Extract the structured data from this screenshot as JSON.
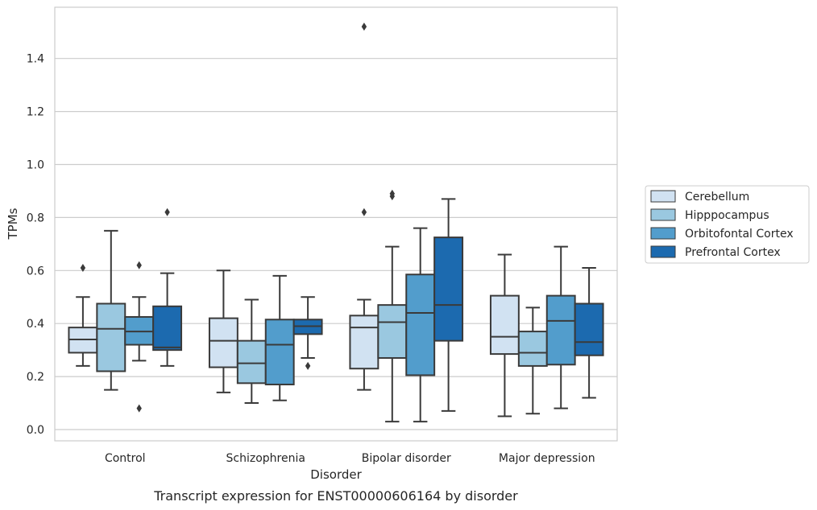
{
  "chart_data": {
    "type": "boxplot",
    "title": "Transcript expression for ENST00000606164 by disorder",
    "xlabel": "Disorder",
    "ylabel": "TPMs",
    "categories": [
      "Control",
      "Schizophrenia",
      "Bipolar disorder",
      "Major depression"
    ],
    "ylim": [
      -0.04,
      1.59
    ],
    "yticks": [
      "0.0",
      "0.2",
      "0.4",
      "0.6",
      "0.8",
      "1.0",
      "1.2",
      "1.4"
    ],
    "grid": "horizontal",
    "legend_position": "right",
    "series": [
      {
        "name": "Cerebellum",
        "color": "#d1e2f2",
        "boxes": [
          {
            "whisker_low": 0.24,
            "q1": 0.29,
            "median": 0.34,
            "q3": 0.385,
            "whisker_high": 0.5,
            "outliers": [
              0.61
            ]
          },
          {
            "whisker_low": 0.14,
            "q1": 0.235,
            "median": 0.335,
            "q3": 0.42,
            "whisker_high": 0.6,
            "outliers": []
          },
          {
            "whisker_low": 0.15,
            "q1": 0.23,
            "median": 0.385,
            "q3": 0.43,
            "whisker_high": 0.49,
            "outliers": [
              0.82,
              1.52
            ]
          },
          {
            "whisker_low": 0.05,
            "q1": 0.285,
            "median": 0.35,
            "q3": 0.505,
            "whisker_high": 0.66,
            "outliers": []
          }
        ]
      },
      {
        "name": "Hipppocampus",
        "color": "#9ac8e0",
        "boxes": [
          {
            "whisker_low": 0.15,
            "q1": 0.22,
            "median": 0.38,
            "q3": 0.475,
            "whisker_high": 0.75,
            "outliers": []
          },
          {
            "whisker_low": 0.1,
            "q1": 0.175,
            "median": 0.25,
            "q3": 0.335,
            "whisker_high": 0.49,
            "outliers": []
          },
          {
            "whisker_low": 0.03,
            "q1": 0.27,
            "median": 0.405,
            "q3": 0.47,
            "whisker_high": 0.69,
            "outliers": [
              0.88,
              0.89
            ]
          },
          {
            "whisker_low": 0.06,
            "q1": 0.24,
            "median": 0.29,
            "q3": 0.37,
            "whisker_high": 0.46,
            "outliers": []
          }
        ]
      },
      {
        "name": "Orbitofontal Cortex",
        "color": "#529dcc",
        "boxes": [
          {
            "whisker_low": 0.26,
            "q1": 0.32,
            "median": 0.37,
            "q3": 0.425,
            "whisker_high": 0.5,
            "outliers": [
              0.62,
              0.08
            ]
          },
          {
            "whisker_low": 0.11,
            "q1": 0.17,
            "median": 0.32,
            "q3": 0.415,
            "whisker_high": 0.58,
            "outliers": []
          },
          {
            "whisker_low": 0.03,
            "q1": 0.205,
            "median": 0.44,
            "q3": 0.585,
            "whisker_high": 0.76,
            "outliers": []
          },
          {
            "whisker_low": 0.08,
            "q1": 0.245,
            "median": 0.41,
            "q3": 0.505,
            "whisker_high": 0.69,
            "outliers": []
          }
        ]
      },
      {
        "name": "Prefrontal Cortex",
        "color": "#1c6aaf",
        "boxes": [
          {
            "whisker_low": 0.24,
            "q1": 0.3,
            "median": 0.31,
            "q3": 0.465,
            "whisker_high": 0.59,
            "outliers": [
              0.82
            ]
          },
          {
            "whisker_low": 0.27,
            "q1": 0.36,
            "median": 0.39,
            "q3": 0.415,
            "whisker_high": 0.5,
            "outliers": [
              0.24
            ]
          },
          {
            "whisker_low": 0.07,
            "q1": 0.335,
            "median": 0.47,
            "q3": 0.725,
            "whisker_high": 0.87,
            "outliers": []
          },
          {
            "whisker_low": 0.12,
            "q1": 0.28,
            "median": 0.33,
            "q3": 0.475,
            "whisker_high": 0.61,
            "outliers": []
          }
        ]
      }
    ]
  }
}
